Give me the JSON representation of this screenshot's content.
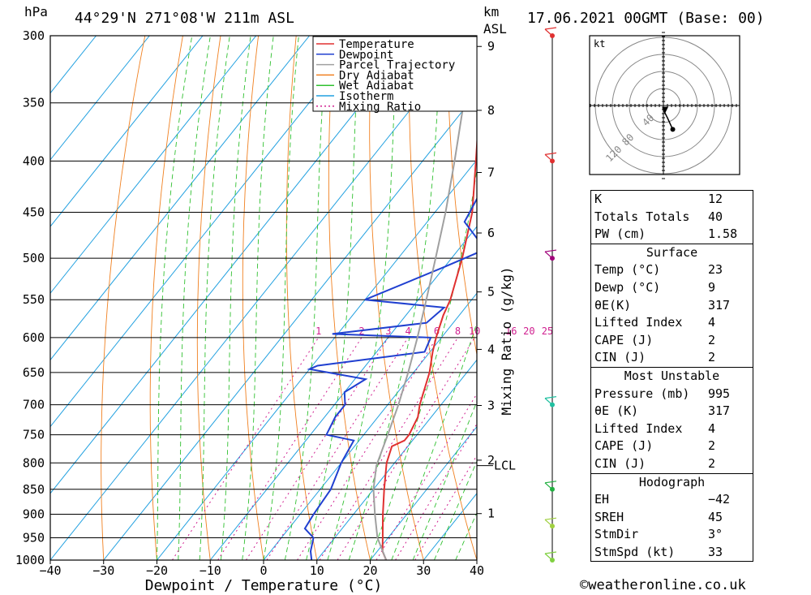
{
  "header": {
    "location": "44°29'N  271°08'W  211m  ASL",
    "datetime": "17.06.2021  00GMT  (Base: 00)",
    "hpa_label": "hPa",
    "km_label": "km",
    "asl_label": "ASL"
  },
  "copyright": "©weatheronline.co.uk",
  "chart_data": {
    "type": "line",
    "xlabel": "Dewpoint / Temperature (°C)",
    "ylabel_right": "Mixing Ratio (g/kg)",
    "x_ticks": [
      "−40",
      "−30",
      "−20",
      "−10",
      "0",
      "10",
      "20",
      "30",
      "40"
    ],
    "x_values": [
      -40,
      -30,
      -20,
      -10,
      0,
      10,
      20,
      30,
      40
    ],
    "pressure_levels": [
      300,
      350,
      400,
      450,
      500,
      550,
      600,
      650,
      700,
      750,
      800,
      850,
      900,
      950,
      1000
    ],
    "pressure_labels": [
      "300",
      "350",
      "400",
      "450",
      "500",
      "550",
      "600",
      "650",
      "700",
      "750",
      "800",
      "850",
      "900",
      "950",
      "1000"
    ],
    "km_ticks": [
      {
        "label": "9",
        "km": 9
      },
      {
        "label": "8",
        "km": 8
      },
      {
        "label": "7",
        "km": 7
      },
      {
        "label": "6",
        "km": 6
      },
      {
        "label": "5",
        "km": 5
      },
      {
        "label": "4",
        "km": 4
      },
      {
        "label": "3",
        "km": 3
      },
      {
        "label": "2",
        "km": 2
      },
      {
        "label": "1",
        "km": 1
      }
    ],
    "lcl_label": "LCL",
    "lcl_pressure": 805,
    "mixing_ratio_labels": [
      "1",
      "2",
      "3",
      "4",
      "6",
      "8",
      "10",
      "16",
      "20",
      "25"
    ],
    "mixing_ratio_values": [
      1,
      2,
      3,
      4,
      6,
      8,
      10,
      16,
      20,
      25
    ],
    "legend": [
      "Temperature",
      "Dewpoint",
      "Parcel Trajectory",
      "Dry Adiabat",
      "Wet Adiabat",
      "Isotherm",
      "Mixing Ratio"
    ],
    "legend_placement": "top-right",
    "series": [
      {
        "name": "Temperature",
        "color": "#e03030",
        "points": [
          [
            1000,
            23
          ],
          [
            980,
            21
          ],
          [
            950,
            19
          ],
          [
            900,
            15.5
          ],
          [
            850,
            12
          ],
          [
            800,
            8.5
          ],
          [
            770,
            7
          ],
          [
            760,
            8.5
          ],
          [
            750,
            8.5
          ],
          [
            720,
            7.5
          ],
          [
            700,
            6
          ],
          [
            650,
            3
          ],
          [
            620,
            0.5
          ],
          [
            600,
            -1
          ],
          [
            570,
            -3
          ],
          [
            550,
            -4
          ],
          [
            500,
            -8
          ],
          [
            450,
            -13
          ],
          [
            400,
            -20
          ],
          [
            350,
            -28
          ],
          [
            300,
            -37
          ]
        ]
      },
      {
        "name": "Dewpoint",
        "color": "#2040d0",
        "points": [
          [
            1000,
            9
          ],
          [
            980,
            7.5
          ],
          [
            950,
            6
          ],
          [
            930,
            3
          ],
          [
            900,
            2.5
          ],
          [
            850,
            2
          ],
          [
            800,
            0
          ],
          [
            760,
            -1
          ],
          [
            750,
            -7
          ],
          [
            720,
            -8
          ],
          [
            700,
            -8
          ],
          [
            680,
            -10
          ],
          [
            660,
            -8
          ],
          [
            645,
            -20
          ],
          [
            640,
            -19
          ],
          [
            620,
            -1
          ],
          [
            600,
            -2
          ],
          [
            595,
            -21
          ],
          [
            580,
            -5
          ],
          [
            560,
            -4
          ],
          [
            550,
            -20
          ],
          [
            510,
            -10
          ],
          [
            490,
            -5
          ],
          [
            460,
            -13
          ],
          [
            400,
            -16
          ],
          [
            360,
            -15
          ],
          [
            330,
            -20
          ],
          [
            320,
            -19
          ],
          [
            300,
            -18
          ]
        ]
      },
      {
        "name": "Parcel Trajectory",
        "color": "#a0a0a0",
        "points": [
          [
            1000,
            23
          ],
          [
            950,
            18
          ],
          [
            900,
            14
          ],
          [
            850,
            10
          ],
          [
            805,
            7
          ],
          [
            750,
            4.5
          ],
          [
            700,
            2
          ],
          [
            650,
            -1
          ],
          [
            600,
            -4.5
          ],
          [
            550,
            -8.5
          ],
          [
            500,
            -13
          ],
          [
            450,
            -18
          ],
          [
            400,
            -24
          ],
          [
            350,
            -31
          ],
          [
            300,
            -39
          ]
        ]
      }
    ]
  },
  "hodograph": {
    "unit_label": "kt",
    "ring_labels": [
      "40",
      "80",
      "120"
    ],
    "points": [
      [
        -1,
        3
      ],
      [
        0,
        4
      ],
      [
        2,
        9
      ],
      [
        5,
        15
      ],
      [
        11,
        28
      ]
    ]
  },
  "wind_barbs": [
    {
      "pressure": 300,
      "color": "#e03030"
    },
    {
      "pressure": 400,
      "color": "#e03030"
    },
    {
      "pressure": 500,
      "color": "#a0007a"
    },
    {
      "pressure": 700,
      "color": "#20c0a0"
    },
    {
      "pressure": 850,
      "color": "#20b040"
    },
    {
      "pressure": 925,
      "color": "#a0d040"
    },
    {
      "pressure": 1000,
      "color": "#80d040"
    }
  ],
  "indices": [
    {
      "k": "K",
      "v": "12"
    },
    {
      "k": "Totals Totals",
      "v": "40"
    },
    {
      "k": "PW (cm)",
      "v": "1.58"
    }
  ],
  "surface": {
    "title": "Surface",
    "rows": [
      {
        "k": "Temp (°C)",
        "v": "23"
      },
      {
        "k": "Dewp (°C)",
        "v": "9"
      },
      {
        "k": "θE(K)",
        "v": "317"
      },
      {
        "k": "Lifted Index",
        "v": "4"
      },
      {
        "k": "CAPE (J)",
        "v": "2"
      },
      {
        "k": "CIN (J)",
        "v": "2"
      }
    ]
  },
  "most_unstable": {
    "title": "Most Unstable",
    "rows": [
      {
        "k": "Pressure (mb)",
        "v": "995"
      },
      {
        "k": "θE (K)",
        "v": "317"
      },
      {
        "k": "Lifted Index",
        "v": "4"
      },
      {
        "k": "CAPE (J)",
        "v": "2"
      },
      {
        "k": "CIN (J)",
        "v": "2"
      }
    ]
  },
  "hodo_table": {
    "title": "Hodograph",
    "rows": [
      {
        "k": "EH",
        "v": "−42"
      },
      {
        "k": "SREH",
        "v": "45"
      },
      {
        "k": "StmDir",
        "v": "3°"
      },
      {
        "k": "StmSpd (kt)",
        "v": "33"
      }
    ]
  }
}
